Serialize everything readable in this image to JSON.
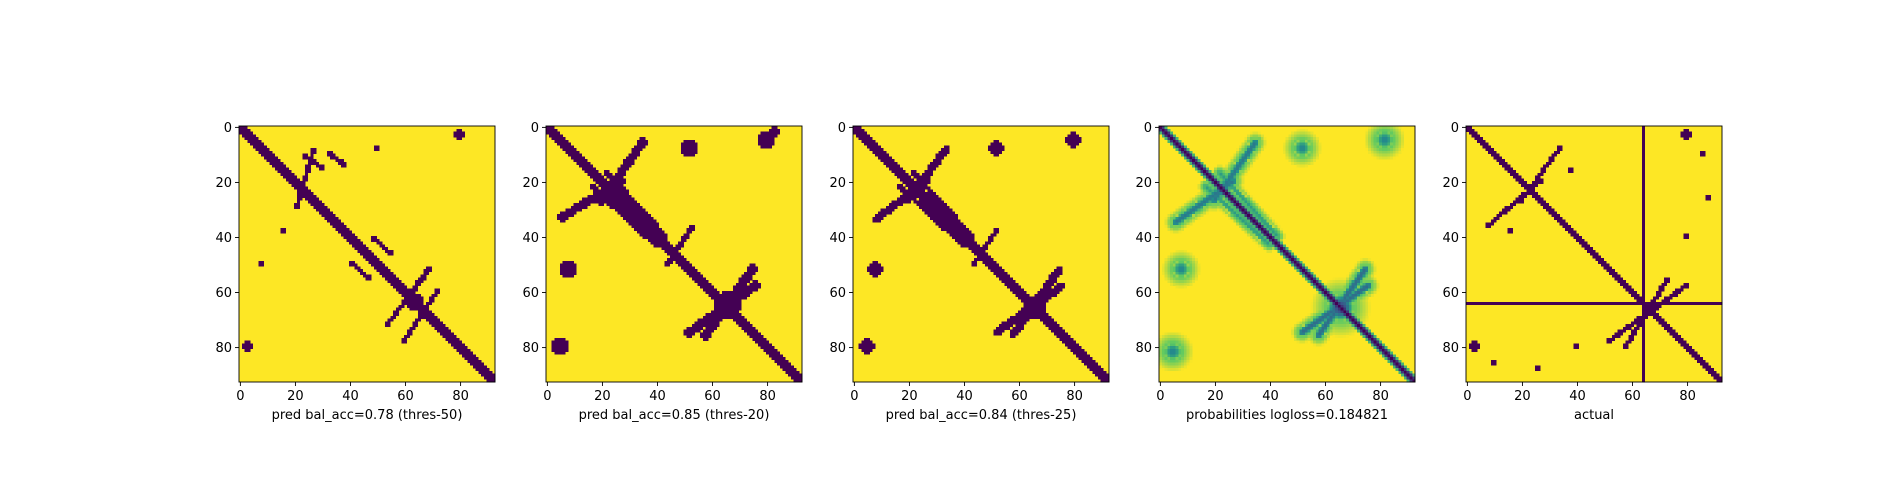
{
  "chart_data": [
    {
      "type": "heatmap",
      "title": "",
      "xlabel": "pred bal_acc=0.78 (thres-50)",
      "ylabel": "",
      "grid_size": 93,
      "xlim": [
        0,
        93
      ],
      "ylim": [
        93,
        0
      ],
      "xticks": [
        "0",
        "20",
        "40",
        "60",
        "80"
      ],
      "yticks": [
        "0",
        "20",
        "40",
        "60",
        "80"
      ],
      "colormap": "viridis",
      "background_value": 1,
      "grid": false,
      "features": [
        {
          "kind": "diagonal",
          "from": 0,
          "to": 93,
          "half_width": 1.5
        },
        {
          "kind": "segment",
          "from": [
            21,
            29
          ],
          "to": [
            27,
            9
          ],
          "half_width": 0.9
        },
        {
          "kind": "segment",
          "from": [
            24,
            11
          ],
          "to": [
            30,
            15
          ],
          "half_width": 0.9
        },
        {
          "kind": "segment",
          "from": [
            33,
            10
          ],
          "to": [
            38,
            14
          ],
          "half_width": 0.9
        },
        {
          "kind": "segment",
          "from": [
            41,
            50
          ],
          "to": [
            47,
            55
          ],
          "half_width": 0.8
        },
        {
          "kind": "segment",
          "from": [
            49,
            41
          ],
          "to": [
            55,
            46
          ],
          "half_width": 0.8
        },
        {
          "kind": "segment",
          "from": [
            54,
            72
          ],
          "to": [
            69,
            52
          ],
          "half_width": 0.9
        },
        {
          "kind": "segment",
          "from": [
            60,
            78
          ],
          "to": [
            72,
            60
          ],
          "half_width": 0.9
        },
        {
          "kind": "blob",
          "center": [
            64,
            64
          ],
          "radius": 3
        },
        {
          "kind": "blob",
          "center": [
            3,
            80
          ],
          "radius": 1.8
        },
        {
          "kind": "blob",
          "center": [
            80,
            3
          ],
          "radius": 1.8
        },
        {
          "kind": "blob",
          "center": [
            50,
            8
          ],
          "radius": 1.3
        },
        {
          "kind": "blob",
          "center": [
            8,
            50
          ],
          "radius": 1.3
        },
        {
          "kind": "blob",
          "center": [
            16,
            38
          ],
          "radius": 1.2
        }
      ]
    },
    {
      "type": "heatmap",
      "title": "",
      "xlabel": "pred bal_acc=0.85 (thres-20)",
      "ylabel": "",
      "grid_size": 93,
      "xlim": [
        0,
        93
      ],
      "ylim": [
        93,
        0
      ],
      "xticks": [
        "0",
        "20",
        "40",
        "60",
        "80"
      ],
      "yticks": [
        "0",
        "20",
        "40",
        "60",
        "80"
      ],
      "colormap": "viridis",
      "background_value": 1,
      "grid": false,
      "features": [
        {
          "kind": "diagonal",
          "from": 0,
          "to": 93,
          "half_width": 1.8
        },
        {
          "kind": "segment",
          "from": [
            20,
            27
          ],
          "to": [
            35,
            6
          ],
          "half_width": 1.6
        },
        {
          "kind": "segment",
          "from": [
            22,
            17
          ],
          "to": [
            43,
            40
          ],
          "half_width": 1.2
        },
        {
          "kind": "segment",
          "from": [
            6,
            33
          ],
          "to": [
            27,
            20
          ],
          "half_width": 1.6
        },
        {
          "kind": "segment",
          "from": [
            17,
            22
          ],
          "to": [
            40,
            43
          ],
          "half_width": 1.2
        },
        {
          "kind": "segment",
          "from": [
            58,
            76
          ],
          "to": [
            75,
            52
          ],
          "half_width": 1.7
        },
        {
          "kind": "segment",
          "from": [
            52,
            75
          ],
          "to": [
            76,
            58
          ],
          "half_width": 1.7
        },
        {
          "kind": "segment",
          "from": [
            44,
            50
          ],
          "to": [
            53,
            37
          ],
          "half_width": 1.0
        },
        {
          "kind": "blob",
          "center": [
            66,
            65
          ],
          "radius": 5
        },
        {
          "kind": "blob",
          "center": [
            52,
            8
          ],
          "radius": 3.2
        },
        {
          "kind": "blob",
          "center": [
            8,
            52
          ],
          "radius": 3.2
        },
        {
          "kind": "blob",
          "center": [
            80,
            5
          ],
          "radius": 3
        },
        {
          "kind": "blob",
          "center": [
            5,
            80
          ],
          "radius": 3
        },
        {
          "kind": "blob",
          "center": [
            83,
            2
          ],
          "radius": 2
        }
      ]
    },
    {
      "type": "heatmap",
      "title": "",
      "xlabel": "pred bal_acc=0.84 (thres-25)",
      "ylabel": "",
      "grid_size": 93,
      "xlim": [
        0,
        93
      ],
      "ylim": [
        93,
        0
      ],
      "xticks": [
        "0",
        "20",
        "40",
        "60",
        "80"
      ],
      "yticks": [
        "0",
        "20",
        "40",
        "60",
        "80"
      ],
      "colormap": "viridis",
      "background_value": 1,
      "grid": false,
      "features": [
        {
          "kind": "diagonal",
          "from": 0,
          "to": 93,
          "half_width": 1.7
        },
        {
          "kind": "segment",
          "from": [
            20,
            27
          ],
          "to": [
            34,
            8
          ],
          "half_width": 1.4
        },
        {
          "kind": "segment",
          "from": [
            22,
            17
          ],
          "to": [
            43,
            40
          ],
          "half_width": 1.0
        },
        {
          "kind": "segment",
          "from": [
            8,
            34
          ],
          "to": [
            27,
            20
          ],
          "half_width": 1.4
        },
        {
          "kind": "segment",
          "from": [
            17,
            22
          ],
          "to": [
            40,
            43
          ],
          "half_width": 1.0
        },
        {
          "kind": "segment",
          "from": [
            58,
            76
          ],
          "to": [
            75,
            52
          ],
          "half_width": 1.5
        },
        {
          "kind": "segment",
          "from": [
            52,
            75
          ],
          "to": [
            76,
            58
          ],
          "half_width": 1.5
        },
        {
          "kind": "segment",
          "from": [
            44,
            50
          ],
          "to": [
            52,
            38
          ],
          "half_width": 0.9
        },
        {
          "kind": "blob",
          "center": [
            66,
            66
          ],
          "radius": 4.3
        },
        {
          "kind": "blob",
          "center": [
            52,
            8
          ],
          "radius": 2.6
        },
        {
          "kind": "blob",
          "center": [
            8,
            52
          ],
          "radius": 2.6
        },
        {
          "kind": "blob",
          "center": [
            80,
            5
          ],
          "radius": 2.6
        },
        {
          "kind": "blob",
          "center": [
            5,
            80
          ],
          "radius": 2.6
        }
      ]
    },
    {
      "type": "heatmap",
      "title": "",
      "xlabel": "probabilities logloss=0.184821",
      "ylabel": "",
      "grid_size": 93,
      "xlim": [
        0,
        93
      ],
      "ylim": [
        93,
        0
      ],
      "xticks": [
        "0",
        "20",
        "40",
        "60",
        "80"
      ],
      "yticks": [
        "0",
        "20",
        "40",
        "60",
        "80"
      ],
      "colormap": "viridis",
      "background_value": 1,
      "continuous": true,
      "grid": false,
      "features": [
        {
          "kind": "diagonal",
          "from": 0,
          "to": 93,
          "half_width": 1.6
        },
        {
          "kind": "segment",
          "from": [
            20,
            27
          ],
          "to": [
            35,
            6
          ],
          "half_width": 1.8,
          "value": 0.4
        },
        {
          "kind": "segment",
          "from": [
            6,
            35
          ],
          "to": [
            27,
            20
          ],
          "half_width": 1.8,
          "value": 0.4
        },
        {
          "kind": "segment",
          "from": [
            58,
            76
          ],
          "to": [
            75,
            52
          ],
          "half_width": 1.8,
          "value": 0.35
        },
        {
          "kind": "segment",
          "from": [
            52,
            75
          ],
          "to": [
            76,
            58
          ],
          "half_width": 1.8,
          "value": 0.35
        },
        {
          "kind": "segment",
          "from": [
            22,
            17
          ],
          "to": [
            43,
            40
          ],
          "half_width": 1.3,
          "value": 0.55
        },
        {
          "kind": "segment",
          "from": [
            17,
            22
          ],
          "to": [
            40,
            43
          ],
          "half_width": 1.3,
          "value": 0.55
        },
        {
          "kind": "blob",
          "center": [
            66,
            66
          ],
          "radius": 5,
          "value": 0.2
        },
        {
          "kind": "blob",
          "center": [
            52,
            8
          ],
          "radius": 3.2,
          "value": 0.45
        },
        {
          "kind": "blob",
          "center": [
            8,
            52
          ],
          "radius": 3.2,
          "value": 0.45
        },
        {
          "kind": "blob",
          "center": [
            82,
            5
          ],
          "radius": 3.4,
          "value": 0.45
        },
        {
          "kind": "blob",
          "center": [
            5,
            82
          ],
          "radius": 3.4,
          "value": 0.45
        }
      ]
    },
    {
      "type": "heatmap",
      "title": "",
      "xlabel": "actual",
      "ylabel": "",
      "grid_size": 93,
      "xlim": [
        0,
        93
      ],
      "ylim": [
        93,
        0
      ],
      "xticks": [
        "0",
        "20",
        "40",
        "60",
        "80"
      ],
      "yticks": [
        "0",
        "20",
        "40",
        "60",
        "80"
      ],
      "colormap": "viridis",
      "background_value": 1,
      "grid": false,
      "features": [
        {
          "kind": "diagonal",
          "from": 0,
          "to": 93,
          "half_width": 1.3
        },
        {
          "kind": "hline",
          "at": 64
        },
        {
          "kind": "vline",
          "at": 64
        },
        {
          "kind": "segment",
          "from": [
            20,
            27
          ],
          "to": [
            34,
            8
          ],
          "half_width": 0.8
        },
        {
          "kind": "segment",
          "from": [
            8,
            36
          ],
          "to": [
            27,
            20
          ],
          "half_width": 0.8
        },
        {
          "kind": "segment",
          "from": [
            58,
            80
          ],
          "to": [
            73,
            56
          ],
          "half_width": 0.9
        },
        {
          "kind": "segment",
          "from": [
            52,
            78
          ],
          "to": [
            80,
            58
          ],
          "half_width": 0.9
        },
        {
          "kind": "blob",
          "center": [
            80,
            3
          ],
          "radius": 1.6
        },
        {
          "kind": "blob",
          "center": [
            3,
            80
          ],
          "radius": 1.6
        },
        {
          "kind": "blob",
          "center": [
            40,
            80
          ],
          "radius": 1.4
        },
        {
          "kind": "blob",
          "center": [
            80,
            40
          ],
          "radius": 1.4
        },
        {
          "kind": "blob",
          "center": [
            66,
            66
          ],
          "radius": 2.2
        },
        {
          "kind": "blob",
          "center": [
            38,
            16
          ],
          "radius": 1
        },
        {
          "kind": "blob",
          "center": [
            16,
            38
          ],
          "radius": 1
        },
        {
          "kind": "blob",
          "center": [
            88,
            26
          ],
          "radius": 1
        },
        {
          "kind": "blob",
          "center": [
            26,
            88
          ],
          "radius": 1
        },
        {
          "kind": "blob",
          "center": [
            86,
            10
          ],
          "radius": 1.1
        },
        {
          "kind": "blob",
          "center": [
            10,
            86
          ],
          "radius": 1.1
        }
      ]
    }
  ]
}
